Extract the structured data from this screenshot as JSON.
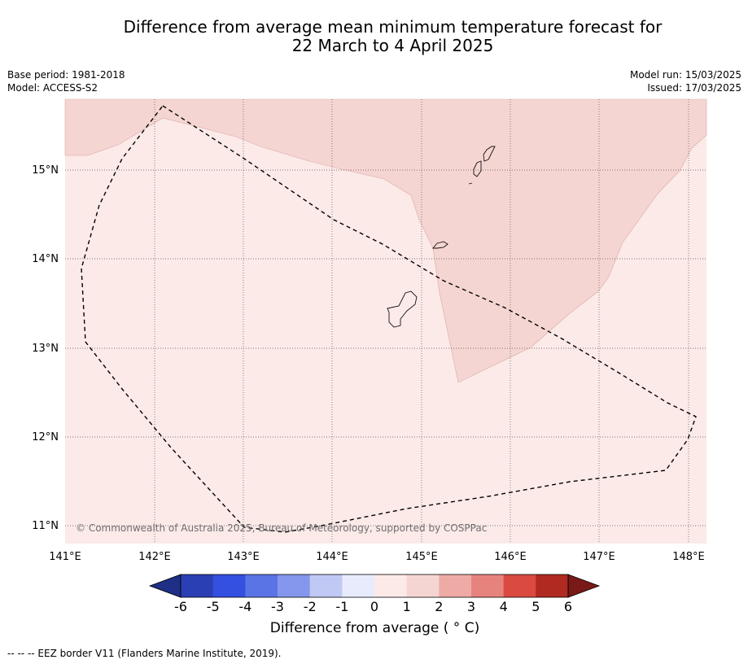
{
  "title": {
    "line1": "Difference from average mean minimum temperature forecast for",
    "line2": "22 March to 4 April 2025"
  },
  "meta": {
    "base_period": "Base period: 1981-2018",
    "model": "Model: ACCESS-S2",
    "model_run": "Model run: 15/03/2025",
    "issued": "Issued: 17/03/2025"
  },
  "map": {
    "lon_ticks": [
      "141°E",
      "142°E",
      "143°E",
      "144°E",
      "145°E",
      "146°E",
      "147°E",
      "148°E"
    ],
    "lat_ticks": [
      "15°N",
      "14°N",
      "13°N",
      "12°N",
      "11°N"
    ],
    "copyright": "© Commonwealth of Australia 2025, Bureau of Meteorology, supported by COSPPac"
  },
  "colorbar": {
    "labels": [
      "-6",
      "-5",
      "-4",
      "-3",
      "-2",
      "-1",
      "0",
      "1",
      "2",
      "3",
      "4",
      "5",
      "6"
    ],
    "colors": [
      "#1e2f85",
      "#2a3fb3",
      "#3350e0",
      "#5a74e6",
      "#8497ec",
      "#c0c8f4",
      "#e8ebfc",
      "#fbeae8",
      "#f5d5d2",
      "#eeaba6",
      "#e6837d",
      "#da4a40",
      "#b02a22",
      "#7a1a18"
    ],
    "title": "Difference from average ( ° C)"
  },
  "footer": "--  --  -- EEZ border V11 (Flanders Marine Institute, 2019)."
}
